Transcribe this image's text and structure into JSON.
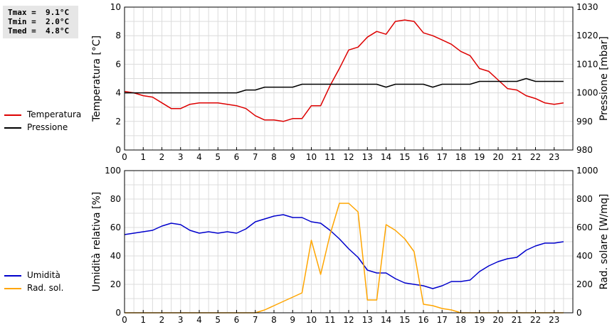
{
  "stats": {
    "tmax": "Tmax =  9.1°C",
    "tmin": "Tmin =  2.0°C",
    "tmed": "Tmed =  4.8°C"
  },
  "chart_data": [
    {
      "type": "line",
      "xlabel": "",
      "x_ticks": [
        "0",
        "1",
        "2",
        "3",
        "4",
        "5",
        "6",
        "7",
        "8",
        "9",
        "10",
        "11",
        "12",
        "13",
        "14",
        "15",
        "16",
        "17",
        "18",
        "19",
        "20",
        "21",
        "22",
        "23"
      ],
      "xlim": [
        0,
        24
      ],
      "grid": true,
      "legend": "left",
      "left_axis": {
        "label": "Temperatura [°C]",
        "ylim": [
          0,
          10
        ],
        "ticks": [
          "0",
          "2",
          "4",
          "6",
          "8",
          "10"
        ]
      },
      "right_axis": {
        "label": "Pressione [mbar]",
        "ylim": [
          980,
          1030
        ],
        "ticks": [
          "980",
          "990",
          "1000",
          "1010",
          "1020",
          "1030"
        ]
      },
      "series": [
        {
          "name": "Temperatura",
          "axis": "left",
          "color": "#dd0000",
          "x": [
            0,
            0.5,
            1,
            1.5,
            2,
            2.5,
            3,
            3.5,
            4,
            4.5,
            5,
            5.5,
            6,
            6.5,
            7,
            7.5,
            8,
            8.5,
            9,
            9.5,
            10,
            10.5,
            11,
            11.5,
            12,
            12.5,
            13,
            13.5,
            14,
            14.5,
            15,
            15.5,
            16,
            16.5,
            17,
            17.5,
            18,
            18.5,
            19,
            19.5,
            20,
            20.5,
            21,
            21.5,
            22,
            22.5,
            23,
            23.5
          ],
          "y": [
            4.1,
            4.0,
            3.8,
            3.7,
            3.3,
            2.9,
            2.9,
            3.2,
            3.3,
            3.3,
            3.3,
            3.2,
            3.1,
            2.9,
            2.4,
            2.1,
            2.1,
            2.0,
            2.2,
            2.2,
            3.1,
            3.1,
            4.5,
            5.7,
            7.0,
            7.2,
            7.9,
            8.3,
            8.1,
            9.0,
            9.1,
            9.0,
            8.2,
            8.0,
            7.7,
            7.4,
            6.9,
            6.6,
            5.7,
            5.5,
            4.9,
            4.3,
            4.2,
            3.8,
            3.6,
            3.3,
            3.2,
            3.3
          ]
        },
        {
          "name": "Pressione",
          "axis": "right",
          "color": "#000000",
          "x": [
            0,
            0.5,
            1,
            1.5,
            2,
            2.5,
            3,
            3.5,
            4,
            4.5,
            5,
            5.5,
            6,
            6.5,
            7,
            7.5,
            8,
            8.5,
            9,
            9.5,
            10,
            10.5,
            11,
            11.5,
            12,
            12.5,
            13,
            13.5,
            14,
            14.5,
            15,
            15.5,
            16,
            16.5,
            17,
            17.5,
            18,
            18.5,
            19,
            19.5,
            20,
            20.5,
            21,
            21.5,
            22,
            22.5,
            23,
            23.5
          ],
          "y": [
            1000,
            1000,
            1000,
            1000,
            1000,
            1000,
            1000,
            1000,
            1000,
            1000,
            1000,
            1000,
            1000,
            1001,
            1001,
            1002,
            1002,
            1002,
            1002,
            1003,
            1003,
            1003,
            1003,
            1003,
            1003,
            1003,
            1003,
            1003,
            1002,
            1003,
            1003,
            1003,
            1003,
            1002,
            1003,
            1003,
            1003,
            1003,
            1004,
            1004,
            1004,
            1004,
            1004,
            1005,
            1004,
            1004,
            1004,
            1004
          ]
        }
      ]
    },
    {
      "type": "line",
      "xlabel": "",
      "x_ticks": [
        "0",
        "1",
        "2",
        "3",
        "4",
        "5",
        "6",
        "7",
        "8",
        "9",
        "10",
        "11",
        "12",
        "13",
        "14",
        "15",
        "16",
        "17",
        "18",
        "19",
        "20",
        "21",
        "22",
        "23"
      ],
      "xlim": [
        0,
        24
      ],
      "grid": true,
      "legend": "left",
      "left_axis": {
        "label": "Umidità relativa [%]",
        "ylim": [
          0,
          100
        ],
        "ticks": [
          "0",
          "20",
          "40",
          "60",
          "80",
          "100"
        ]
      },
      "right_axis": {
        "label": "Rad. solare [W/mq]",
        "ylim": [
          0,
          1000
        ],
        "ticks": [
          "0",
          "200",
          "400",
          "600",
          "800",
          "1000"
        ]
      },
      "series": [
        {
          "name": "Umidità",
          "axis": "left",
          "color": "#0000cc",
          "x": [
            0,
            0.5,
            1,
            1.5,
            2,
            2.5,
            3,
            3.5,
            4,
            4.5,
            5,
            5.5,
            6,
            6.5,
            7,
            7.5,
            8,
            8.5,
            9,
            9.5,
            10,
            10.5,
            11,
            11.5,
            12,
            12.5,
            13,
            13.5,
            14,
            14.5,
            15,
            15.5,
            16,
            16.5,
            17,
            17.5,
            18,
            18.5,
            19,
            19.5,
            20,
            20.5,
            21,
            21.5,
            22,
            22.5,
            23,
            23.5
          ],
          "y": [
            55,
            56,
            57,
            58,
            61,
            63,
            62,
            58,
            56,
            57,
            56,
            57,
            56,
            59,
            64,
            66,
            68,
            69,
            67,
            67,
            64,
            63,
            58,
            52,
            45,
            39,
            30,
            28,
            28,
            24,
            21,
            20,
            19,
            17,
            19,
            22,
            22,
            23,
            29,
            33,
            36,
            38,
            39,
            44,
            47,
            49,
            49,
            50
          ]
        },
        {
          "name": "Rad. sol.",
          "axis": "right",
          "color": "#ffa500",
          "x": [
            0,
            7,
            7.5,
            8,
            8.5,
            9,
            9.5,
            10,
            10.5,
            11,
            11.5,
            12,
            12.5,
            13,
            13.5,
            14,
            14.5,
            15,
            15.5,
            16,
            16.5,
            17,
            17.5,
            18,
            23.5
          ],
          "y": [
            0,
            0,
            20,
            50,
            80,
            110,
            140,
            510,
            270,
            550,
            770,
            770,
            710,
            90,
            90,
            620,
            580,
            520,
            430,
            60,
            50,
            30,
            20,
            0,
            0
          ]
        }
      ]
    }
  ]
}
